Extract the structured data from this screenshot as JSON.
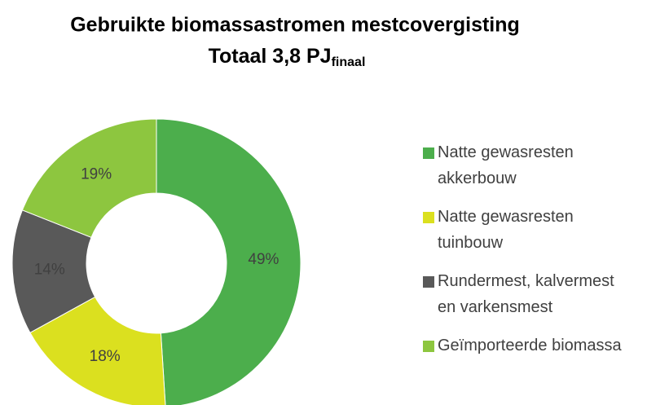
{
  "chart_data": {
    "type": "donut",
    "title": "Gebruikte biomassastromen mestcovergisting",
    "subtitle": "Totaal 3,8 PJ",
    "subtitle_subscript": "finaal",
    "categories": [
      "Natte gewasresten akkerbouw",
      "Natte gewasresten tuinbouw",
      "Rundermest, kalvermest en varkensmest",
      "Geïmporteerde biomassa"
    ],
    "values": [
      49,
      18,
      14,
      19
    ],
    "value_labels": [
      "49%",
      "18%",
      "14%",
      "19%"
    ],
    "colors": [
      "#4cae4c",
      "#dbe01f",
      "#595959",
      "#8dc63f"
    ],
    "legend": "right"
  }
}
